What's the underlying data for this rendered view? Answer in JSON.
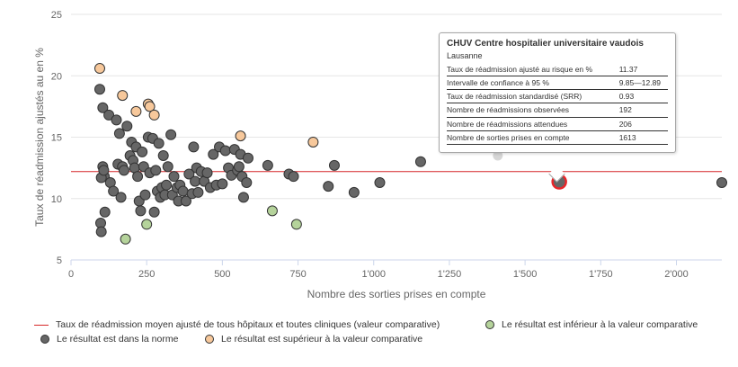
{
  "chart_data": {
    "type": "scatter",
    "xlabel": "Nombre des sorties prises en compte",
    "ylabel": "Taux de réadmission ajustés au en %",
    "xlim": [
      0,
      2150
    ],
    "ylim": [
      5,
      25
    ],
    "x_ticks": [
      0,
      250,
      500,
      750,
      1000,
      1250,
      1500,
      1750,
      2000
    ],
    "x_tick_labels": [
      "0",
      "250",
      "500",
      "750",
      "1'000",
      "1'250",
      "1'500",
      "1'750",
      "2'000"
    ],
    "y_ticks": [
      5,
      10,
      15,
      20,
      25
    ],
    "y_tick_labels": [
      "5",
      "10",
      "15",
      "20",
      "25"
    ],
    "grid": "horizontal",
    "reference_line": {
      "value": 12.2,
      "color": "#d62728"
    },
    "colors": {
      "normal": "#666666",
      "above": "#f7c89b",
      "below": "#b5d39b",
      "reference": "#d62728",
      "highlight_ring": "#e8262a"
    },
    "series": [
      {
        "name": "Le résultat est dans la norme",
        "category": "normal",
        "points": [
          [
            95,
            18.9
          ],
          [
            105,
            17.4
          ],
          [
            125,
            16.8
          ],
          [
            110,
            11.8
          ],
          [
            100,
            11.7
          ],
          [
            105,
            12.6
          ],
          [
            108,
            12.3
          ],
          [
            112,
            8.9
          ],
          [
            98,
            8.0
          ],
          [
            100,
            7.3
          ],
          [
            130,
            11.3
          ],
          [
            140,
            10.6
          ],
          [
            150,
            16.4
          ],
          [
            155,
            12.8
          ],
          [
            160,
            15.3
          ],
          [
            165,
            10.1
          ],
          [
            170,
            12.6
          ],
          [
            175,
            12.3
          ],
          [
            185,
            15.9
          ],
          [
            195,
            13.5
          ],
          [
            200,
            14.6
          ],
          [
            205,
            13.1
          ],
          [
            210,
            12.5
          ],
          [
            215,
            14.2
          ],
          [
            220,
            11.8
          ],
          [
            225,
            9.8
          ],
          [
            230,
            9.0
          ],
          [
            235,
            13.8
          ],
          [
            240,
            12.6
          ],
          [
            245,
            10.3
          ],
          [
            255,
            15.0
          ],
          [
            260,
            12.1
          ],
          [
            270,
            14.9
          ],
          [
            275,
            8.9
          ],
          [
            280,
            12.3
          ],
          [
            285,
            10.6
          ],
          [
            290,
            14.5
          ],
          [
            295,
            10.1
          ],
          [
            300,
            10.9
          ],
          [
            305,
            13.5
          ],
          [
            310,
            10.3
          ],
          [
            315,
            11.1
          ],
          [
            320,
            12.6
          ],
          [
            330,
            15.2
          ],
          [
            335,
            10.3
          ],
          [
            340,
            11.8
          ],
          [
            350,
            10.9
          ],
          [
            355,
            9.8
          ],
          [
            360,
            11.1
          ],
          [
            370,
            10.6
          ],
          [
            380,
            9.8
          ],
          [
            390,
            12.0
          ],
          [
            400,
            10.4
          ],
          [
            405,
            14.2
          ],
          [
            410,
            11.4
          ],
          [
            415,
            12.5
          ],
          [
            420,
            10.5
          ],
          [
            430,
            12.2
          ],
          [
            440,
            11.4
          ],
          [
            450,
            12.1
          ],
          [
            460,
            10.9
          ],
          [
            470,
            13.6
          ],
          [
            480,
            11.1
          ],
          [
            490,
            14.2
          ],
          [
            500,
            11.2
          ],
          [
            510,
            13.9
          ],
          [
            520,
            12.5
          ],
          [
            530,
            11.9
          ],
          [
            540,
            14.0
          ],
          [
            550,
            12.3
          ],
          [
            555,
            12.6
          ],
          [
            560,
            13.6
          ],
          [
            565,
            11.8
          ],
          [
            570,
            10.1
          ],
          [
            580,
            11.3
          ],
          [
            585,
            13.3
          ],
          [
            650,
            12.7
          ],
          [
            720,
            12.0
          ],
          [
            735,
            11.8
          ],
          [
            850,
            11.0
          ],
          [
            870,
            12.7
          ],
          [
            935,
            10.5
          ],
          [
            1020,
            11.3
          ],
          [
            1155,
            13.0
          ],
          [
            2150,
            11.3
          ],
          [
            1613,
            11.37
          ]
        ]
      },
      {
        "name": "Le résultat est supérieur à la valeur comparative",
        "category": "above",
        "points": [
          [
            95,
            20.6
          ],
          [
            170,
            18.4
          ],
          [
            215,
            17.1
          ],
          [
            255,
            17.7
          ],
          [
            260,
            17.5
          ],
          [
            275,
            16.8
          ],
          [
            560,
            15.1
          ],
          [
            800,
            14.6
          ]
        ]
      },
      {
        "name": "Le résultat est inférieur à la valeur comparative",
        "category": "below",
        "points": [
          [
            180,
            6.7
          ],
          [
            250,
            7.9
          ],
          [
            665,
            9.0
          ],
          [
            745,
            7.9
          ]
        ]
      }
    ],
    "highlighted_point": [
      1613,
      11.37
    ],
    "faded_points": [
      [
        1410,
        13.5
      ]
    ]
  },
  "tooltip": {
    "title": "CHUV Centre hospitalier universitaire vaudois",
    "subtitle": "Lausanne",
    "rows": [
      {
        "label": "Taux de réadmission ajusté au risque en %",
        "value": "11.37"
      },
      {
        "label": "Intervalle de confiance à 95 %",
        "value": "9.85—12.89"
      },
      {
        "label": "Taux de réadmission standardisé (SRR)",
        "value": "0.93"
      },
      {
        "label": "Nombre de réadmissions observées",
        "value": "192"
      },
      {
        "label": "Nombre de réadmissions attendues",
        "value": "206"
      },
      {
        "label": "Nombre de sorties prises en compte",
        "value": "1613"
      }
    ]
  },
  "legend": {
    "reference_line": "Taux de réadmission moyen ajusté de tous hôpitaux et toutes cliniques (valeur comparative)",
    "below": "Le résultat est inférieur à la valeur comparative",
    "normal": "Le résultat est dans la norme",
    "above": "Le résultat est supérieur à la valeur comparative"
  }
}
